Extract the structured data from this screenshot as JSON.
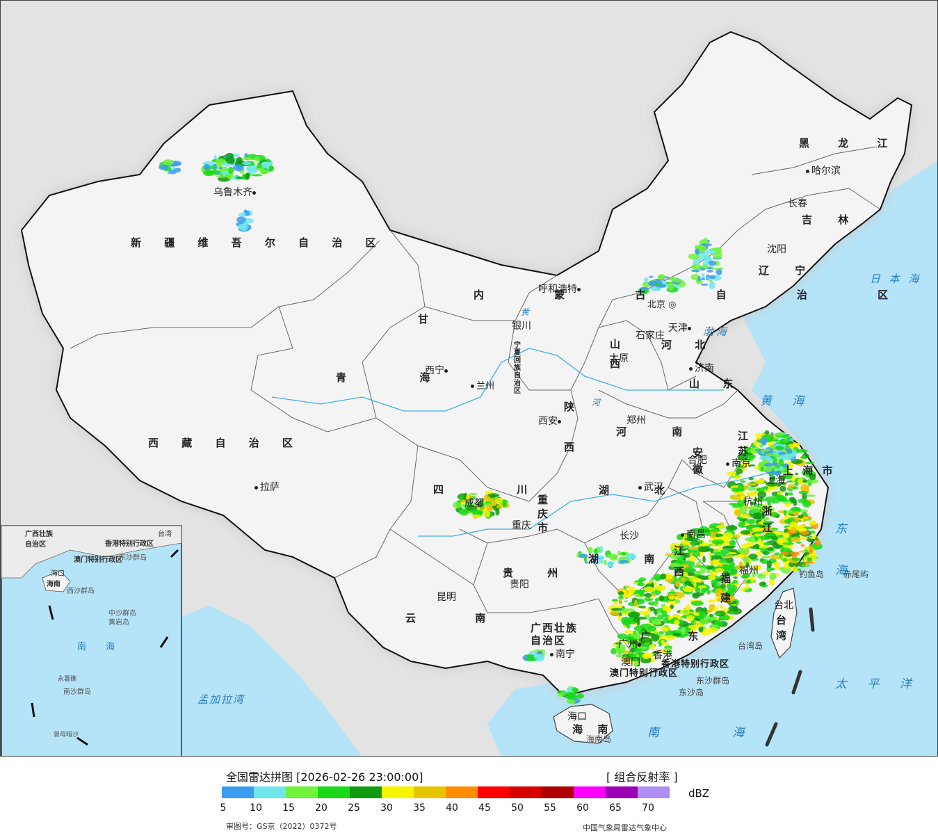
{
  "legend": {
    "title": "全国雷达拼图 [2026-02-26 23:00:00]",
    "product": "[ 组合反射率 ]",
    "unit": "dBZ",
    "review_number": "审图号：GS京（2022）0372号",
    "source": "中国气象局雷达气象中心",
    "colors": [
      "#3b9cf0",
      "#6ee6ec",
      "#6ff23a",
      "#19d919",
      "#0f9a0f",
      "#f5f500",
      "#e6c400",
      "#ff8c00",
      "#ff0000",
      "#d80000",
      "#b00000",
      "#ff00ff",
      "#9a00b4",
      "#ae8ef0"
    ],
    "ticks": [
      "5",
      "10",
      "15",
      "20",
      "25",
      "30",
      "35",
      "40",
      "45",
      "50",
      "55",
      "60",
      "65",
      "70"
    ]
  },
  "map": {
    "provinces": {
      "xinjiang": "新 疆 维 吾 尔 自 治 区",
      "xizang": "西 藏 自 治 区",
      "qinghai": "青 海",
      "gansu": "甘",
      "sichuan": "四 川",
      "yunnan": "云 南",
      "guizhou": "贵 州",
      "guangxi": "广西壮族自治区",
      "guangdong": "广 东",
      "hainan": "海 南",
      "hunan": "湖 南",
      "hubei": "湖 北",
      "henan": "河 南",
      "shanxi": "山 西",
      "shaanxi": "陕 西",
      "ningxia": "宁夏回族自治区",
      "neimenggu": "内 蒙 古 自 治 区",
      "hebei": "河 北",
      "shandong": "山 东",
      "jiangsu": "江 苏",
      "anhui": "安 徽",
      "jiangxi": "江 西",
      "fujian": "福 建",
      "zhejiang": "浙 江",
      "taiwan": "台 湾",
      "liaoning": "辽 宁",
      "jilin": "吉 林",
      "heilongjiang": "黑 龙 江",
      "chongqing": "重 庆 市",
      "shanghai": "上 海 市",
      "hongkong": "香港特别行政区",
      "macau": "澳门特别行政区"
    },
    "cities": {
      "urumqi": "乌鲁木齐",
      "lhasa": "拉萨",
      "xining": "西宁",
      "lanzhou": "兰州",
      "yinchuan": "银川",
      "hohhot": "呼和浩特",
      "beijing": "北京",
      "tianjin": "天津",
      "shijiazhuang": "石家庄",
      "taiyuan": "太原",
      "jinan": "济南",
      "zhengzhou": "郑州",
      "xian": "西安",
      "chengdu": "成都",
      "chongqing": "重庆",
      "wuhan": "武汉",
      "hefei": "合肥",
      "nanjing": "南京",
      "shanghai": "上海",
      "hangzhou": "杭州",
      "changsha": "长沙",
      "nanchang": "南昌",
      "fuzhou": "福州",
      "guiyang": "贵阳",
      "kunming": "昆明",
      "nanning": "南宁",
      "guangzhou": "广州",
      "hk": "香港",
      "macau": "澳门",
      "haikou": "海口",
      "taibei": "台北",
      "shenyang": "沈阳",
      "changchun": "长春",
      "harbin": "哈尔滨"
    },
    "features": {
      "yellow_river": "黄",
      "river_he": "河",
      "bohai": "渤海",
      "yellow_sea": "黄 海",
      "east_sea": "东 海",
      "south_sea": "南 海",
      "pacific": "太 平 洋",
      "sea_japan": "日 本 海",
      "bengal": "孟加拉湾",
      "diaoyu": "钓鱼岛",
      "chiwei": "赤尾屿",
      "taiwan_island": "台湾岛",
      "dongsha": "东沙群岛",
      "dongsha_island": "东沙岛",
      "hainan_island": "海南岛"
    },
    "inset": {
      "guangxi": "广西壮族自治区",
      "hk": "香港特别行政区",
      "macau": "澳门特别行政区",
      "dongsha": "东沙群岛",
      "haikou": "海口",
      "xisha": "西沙群岛",
      "zhongsha": "中沙群岛",
      "huangyan": "黄岩岛",
      "nansha": "南沙群岛",
      "nanhai": "南 海",
      "taiwan": "台湾",
      "hainan": "海南",
      "yongshu": "永暑礁",
      "zengmu": "曾母暗沙"
    }
  }
}
